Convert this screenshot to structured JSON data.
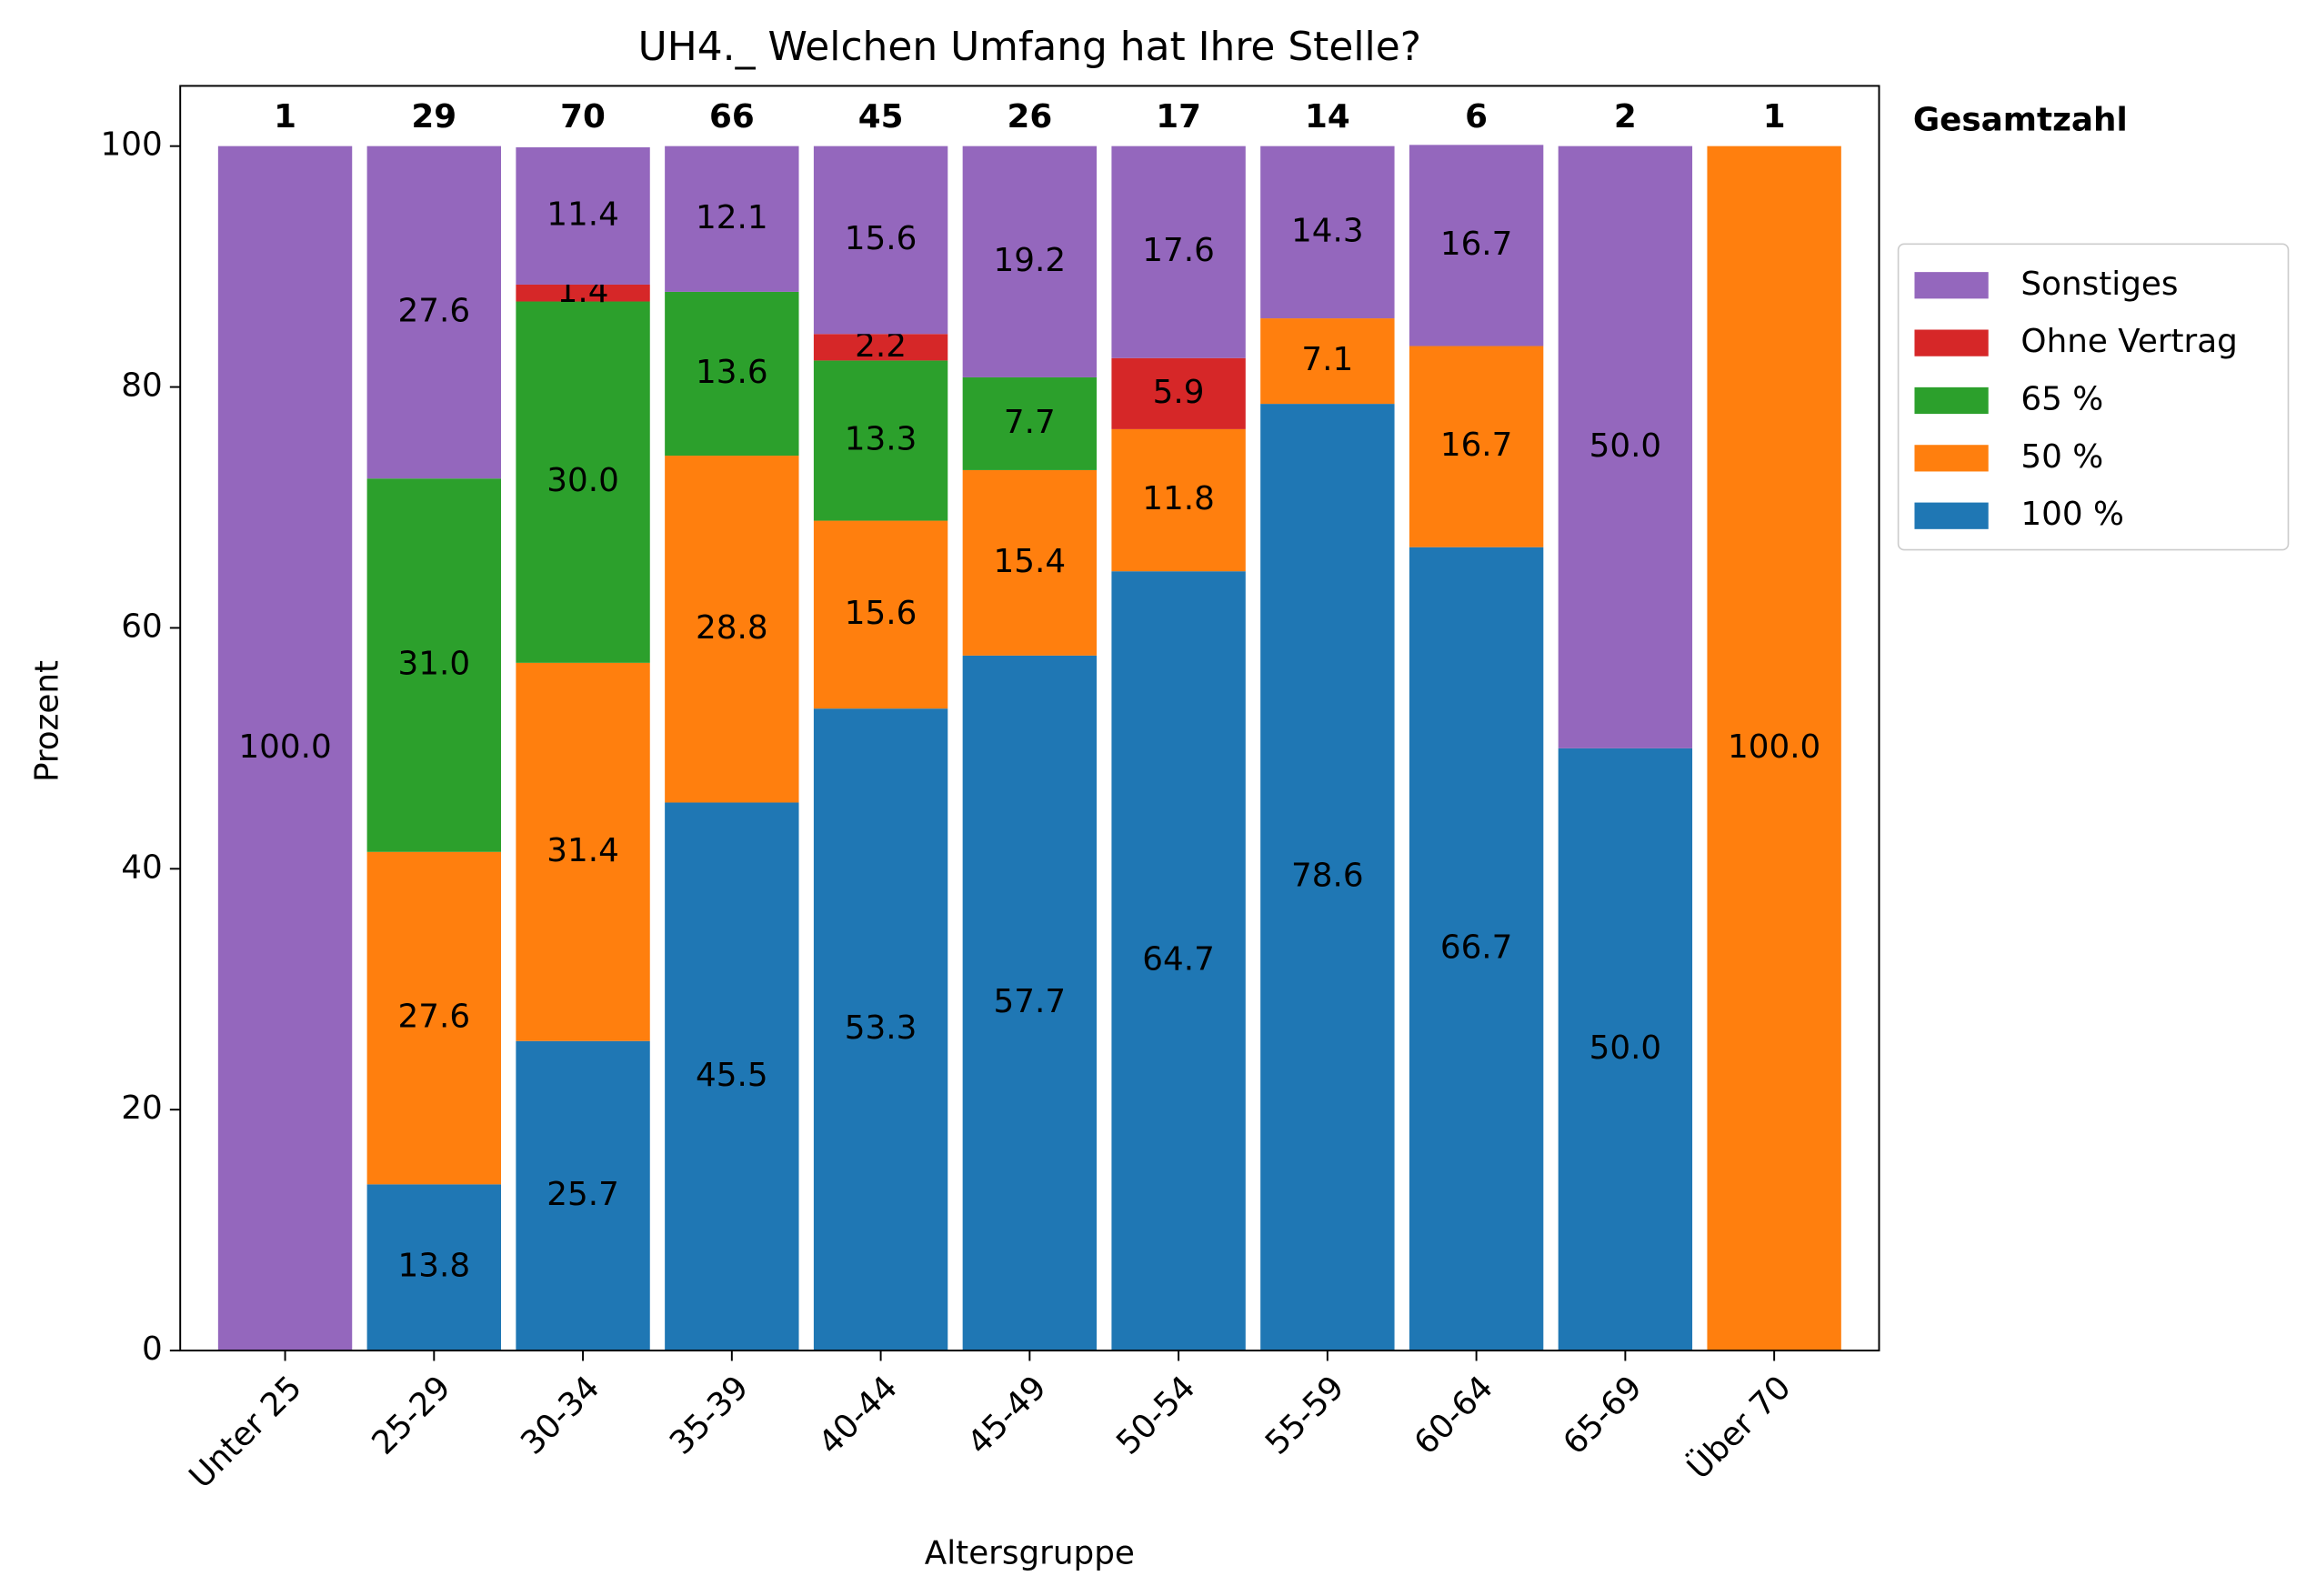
{
  "chart_data": {
    "type": "stacked_bar",
    "title": "UH4._ Welchen Umfang hat Ihre Stelle?",
    "x_label": "Altersgruppe",
    "y_label": "Prozent",
    "categories": [
      "Unter 25",
      "25-29",
      "30-34",
      "35-39",
      "40-44",
      "45-49",
      "50-54",
      "55-59",
      "60-64",
      "65-69",
      "Über 70"
    ],
    "series": [
      {
        "name": "100 %",
        "color": "#1f77b4",
        "values": [
          null,
          13.8,
          25.7,
          45.5,
          53.3,
          57.7,
          64.7,
          78.6,
          66.7,
          50,
          null
        ],
        "value_labels": [
          null,
          "13.8",
          "25.7",
          "45.5",
          "53.3",
          "57.7",
          "64.7",
          "78.6",
          "66.7",
          "50.0",
          null
        ]
      },
      {
        "name": "50 %",
        "color": "#ff7f0e",
        "values": [
          null,
          27.6,
          31.4,
          28.8,
          15.6,
          15.4,
          11.8,
          7.1,
          16.7,
          null,
          100
        ],
        "value_labels": [
          null,
          "27.6",
          "31.4",
          "28.8",
          "15.6",
          "15.4",
          "11.8",
          "7.1",
          "16.7",
          null,
          "100.0"
        ]
      },
      {
        "name": "65 %",
        "color": "#2ca02c",
        "values": [
          null,
          31.0,
          30.0,
          13.6,
          13.3,
          7.7,
          null,
          null,
          null,
          null,
          null
        ],
        "value_labels": [
          null,
          "31.0",
          "30.0",
          "13.6",
          "13.3",
          "7.7",
          null,
          null,
          null,
          null,
          null
        ]
      },
      {
        "name": "Ohne Vertrag",
        "color": "#d62728",
        "values": [
          null,
          null,
          1.4,
          null,
          2.2,
          null,
          5.9,
          null,
          null,
          null,
          null
        ],
        "value_labels": [
          null,
          null,
          "1.4",
          null,
          "2.2",
          null,
          "5.9",
          null,
          null,
          null,
          null
        ]
      },
      {
        "name": "Sonstiges",
        "color": "#9467bd",
        "values": [
          100,
          27.6,
          11.4,
          12.1,
          15.6,
          19.2,
          17.6,
          14.3,
          16.7,
          50,
          null
        ],
        "value_labels": [
          "100.0",
          "27.6",
          "11.4",
          "12.1",
          "15.6",
          "19.2",
          "17.6",
          "14.3",
          "16.7",
          "50.0",
          null
        ]
      }
    ],
    "totals": {
      "label": "Gesamtzahl",
      "values": [
        1,
        29,
        70,
        66,
        45,
        26,
        17,
        14,
        6,
        2,
        1
      ]
    },
    "ylim": [
      0,
      105
    ],
    "yticks": [
      0,
      20,
      40,
      60,
      80,
      100
    ],
    "legend": "right",
    "grid": false
  }
}
